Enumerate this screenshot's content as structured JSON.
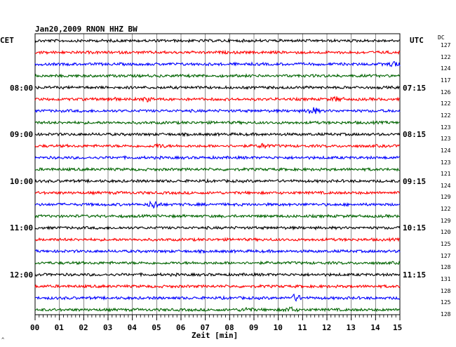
{
  "header": {
    "title": "Jan20,2009   RNON HHZ BW",
    "left_zone": "CET",
    "right_zone": "UTC",
    "dc_header": "DC",
    "x_axis_label": "Zeit [min]",
    "corner_mark": "^"
  },
  "chart_data": {
    "type": "line",
    "title": "Jan20,2009   RNON HHZ BW",
    "xlabel": "Zeit [min]",
    "ylabel": "",
    "xlim": [
      0,
      15
    ],
    "x_ticks": [
      "00",
      "01",
      "02",
      "03",
      "04",
      "05",
      "06",
      "07",
      "08",
      "09",
      "10",
      "11",
      "12",
      "13",
      "14",
      "15"
    ],
    "grid": true,
    "trace_colors": [
      "#000000",
      "#ff0000",
      "#0000ff",
      "#006400"
    ],
    "left_hour_labels": [
      {
        "trace": 4,
        "label": "08:00"
      },
      {
        "trace": 8,
        "label": "09:00"
      },
      {
        "trace": 12,
        "label": "10:00"
      },
      {
        "trace": 16,
        "label": "11:00"
      },
      {
        "trace": 20,
        "label": "12:00"
      }
    ],
    "right_hour_labels": [
      {
        "trace": 4,
        "label": "07:15"
      },
      {
        "trace": 8,
        "label": "08:15"
      },
      {
        "trace": 12,
        "label": "09:15"
      },
      {
        "trace": 16,
        "label": "10:15"
      },
      {
        "trace": 20,
        "label": "11:15"
      }
    ],
    "dc_values": [
      "127",
      "122",
      "124",
      "117",
      "126",
      "122",
      "122",
      "123",
      "123",
      "124",
      "123",
      "121",
      "124",
      "129",
      "122",
      "129",
      "120",
      "125",
      "127",
      "128",
      "131",
      "128",
      "125",
      "128"
    ],
    "events": [
      {
        "trace": 2,
        "minute": 14.8,
        "amplitude": 2.2
      },
      {
        "trace": 5,
        "minute": 3.1,
        "amplitude": 1.5
      },
      {
        "trace": 5,
        "minute": 4.6,
        "amplitude": 1.4
      },
      {
        "trace": 5,
        "minute": 12.4,
        "amplitude": 1.6
      },
      {
        "trace": 6,
        "minute": 11.4,
        "amplitude": 3.0
      },
      {
        "trace": 9,
        "minute": 5.1,
        "amplitude": 1.3
      },
      {
        "trace": 9,
        "minute": 9.4,
        "amplitude": 1.6
      },
      {
        "trace": 14,
        "minute": 4.9,
        "amplitude": 3.0
      },
      {
        "trace": 23,
        "minute": 8.7,
        "amplitude": 1.6
      },
      {
        "trace": 23,
        "minute": 10.5,
        "amplitude": 1.8
      },
      {
        "trace": 22,
        "minute": 10.7,
        "amplitude": 2.6
      }
    ]
  }
}
